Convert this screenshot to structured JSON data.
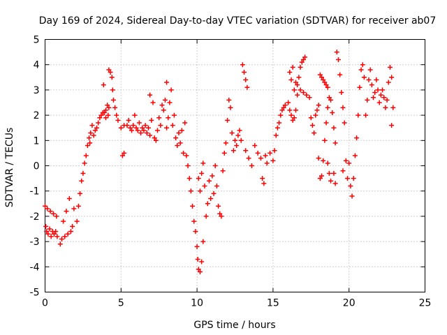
{
  "chart_data": {
    "type": "scatter",
    "title": "Day 169 of 2024, Sidereal Day-to-day VTEC variation (SDTVAR) for receiver ab07",
    "xlabel": "GPS time / hours",
    "ylabel": "SDTVAR / TECUs",
    "xlim": [
      0,
      25
    ],
    "ylim": [
      -5,
      5
    ],
    "xticks": [
      0,
      5,
      10,
      15,
      20,
      25
    ],
    "yticks": [
      -5,
      -4,
      -3,
      -2,
      -1,
      0,
      1,
      2,
      3,
      4,
      5
    ],
    "grid": true,
    "marker": "+",
    "series": [
      {
        "name": "SDTVAR",
        "color": "#ff0000",
        "points": [
          [
            0.0,
            -1.6
          ],
          [
            0.05,
            -2.4
          ],
          [
            0.1,
            -2.6
          ],
          [
            0.15,
            -1.7
          ],
          [
            0.2,
            -2.7
          ],
          [
            0.3,
            -2.5
          ],
          [
            0.35,
            -1.8
          ],
          [
            0.4,
            -2.8
          ],
          [
            0.5,
            -2.6
          ],
          [
            0.55,
            -1.9
          ],
          [
            0.6,
            -2.7
          ],
          [
            0.7,
            -2.6
          ],
          [
            0.75,
            -2.0
          ],
          [
            0.8,
            -2.8
          ],
          [
            1.0,
            -3.1
          ],
          [
            1.1,
            -2.9
          ],
          [
            1.2,
            -2.2
          ],
          [
            1.3,
            -2.8
          ],
          [
            1.4,
            -1.8
          ],
          [
            1.5,
            -2.7
          ],
          [
            1.6,
            -1.3
          ],
          [
            1.7,
            -2.6
          ],
          [
            1.8,
            -2.4
          ],
          [
            1.9,
            -1.7
          ],
          [
            2.1,
            -2.2
          ],
          [
            2.2,
            -1.6
          ],
          [
            2.3,
            -1.1
          ],
          [
            2.4,
            -0.6
          ],
          [
            2.5,
            -0.3
          ],
          [
            2.6,
            0.1
          ],
          [
            2.7,
            0.4
          ],
          [
            2.8,
            0.8
          ],
          [
            2.9,
            1.1
          ],
          [
            3.0,
            1.3
          ],
          [
            3.1,
            1.6
          ],
          [
            2.95,
            0.9
          ],
          [
            3.2,
            1.2
          ],
          [
            3.3,
            1.4
          ],
          [
            3.4,
            1.5
          ],
          [
            3.5,
            1.7
          ],
          [
            3.6,
            1.9
          ],
          [
            3.7,
            2.0
          ],
          [
            3.8,
            2.1
          ],
          [
            3.9,
            2.1
          ],
          [
            4.0,
            2.2
          ],
          [
            4.1,
            2.4
          ],
          [
            4.2,
            2.3
          ],
          [
            3.85,
            3.2
          ],
          [
            4.0,
            1.9
          ],
          [
            4.15,
            2.0
          ],
          [
            4.2,
            3.8
          ],
          [
            4.3,
            3.7
          ],
          [
            4.4,
            3.5
          ],
          [
            4.45,
            3.0
          ],
          [
            4.5,
            2.6
          ],
          [
            4.6,
            2.3
          ],
          [
            4.7,
            2.0
          ],
          [
            4.8,
            1.8
          ],
          [
            5.0,
            1.5
          ],
          [
            5.2,
            1.6
          ],
          [
            5.1,
            0.4
          ],
          [
            5.2,
            0.5
          ],
          [
            5.4,
            1.6
          ],
          [
            5.5,
            1.8
          ],
          [
            5.6,
            1.5
          ],
          [
            5.7,
            1.4
          ],
          [
            5.8,
            1.6
          ],
          [
            5.9,
            2.0
          ],
          [
            6.0,
            1.5
          ],
          [
            6.1,
            1.4
          ],
          [
            6.2,
            1.7
          ],
          [
            6.3,
            1.3
          ],
          [
            6.4,
            1.5
          ],
          [
            6.5,
            1.4
          ],
          [
            6.6,
            1.6
          ],
          [
            6.7,
            1.3
          ],
          [
            6.8,
            1.5
          ],
          [
            6.9,
            1.2
          ],
          [
            7.0,
            1.8
          ],
          [
            7.1,
            2.5
          ],
          [
            6.9,
            2.8
          ],
          [
            7.2,
            1.1
          ],
          [
            7.3,
            1.0
          ],
          [
            7.4,
            1.4
          ],
          [
            7.5,
            1.9
          ],
          [
            7.6,
            1.6
          ],
          [
            7.7,
            2.4
          ],
          [
            7.8,
            2.2
          ],
          [
            7.9,
            2.6
          ],
          [
            8.0,
            1.5
          ],
          [
            8.1,
            1.9
          ],
          [
            8.2,
            2.5
          ],
          [
            8.3,
            3.0
          ],
          [
            8.0,
            3.3
          ],
          [
            8.4,
            1.6
          ],
          [
            8.5,
            2.0
          ],
          [
            8.6,
            1.1
          ],
          [
            8.7,
            0.8
          ],
          [
            8.8,
            1.3
          ],
          [
            8.9,
            0.9
          ],
          [
            9.0,
            1.4
          ],
          [
            9.1,
            0.5
          ],
          [
            9.2,
            1.7
          ],
          [
            9.3,
            0.4
          ],
          [
            9.4,
            0.0
          ],
          [
            9.5,
            -0.5
          ],
          [
            9.6,
            -1.0
          ],
          [
            9.7,
            -1.6
          ],
          [
            9.8,
            -2.2
          ],
          [
            9.9,
            -2.6
          ],
          [
            10.0,
            -3.2
          ],
          [
            10.05,
            -3.7
          ],
          [
            10.1,
            -4.1
          ],
          [
            10.2,
            -4.2
          ],
          [
            10.3,
            -3.8
          ],
          [
            10.4,
            -3.0
          ],
          [
            10.1,
            -0.5
          ],
          [
            10.2,
            -1.0
          ],
          [
            10.3,
            -0.3
          ],
          [
            10.4,
            0.1
          ],
          [
            10.5,
            -0.8
          ],
          [
            10.6,
            -2.0
          ],
          [
            10.7,
            -1.5
          ],
          [
            10.8,
            -0.6
          ],
          [
            10.9,
            -1.3
          ],
          [
            11.0,
            -0.4
          ],
          [
            11.1,
            -1.1
          ],
          [
            11.2,
            0.0
          ],
          [
            11.3,
            -0.8
          ],
          [
            11.4,
            -1.6
          ],
          [
            11.5,
            -1.9
          ],
          [
            11.6,
            -2.0
          ],
          [
            11.7,
            -0.2
          ],
          [
            11.8,
            0.5
          ],
          [
            11.9,
            0.9
          ],
          [
            12.0,
            1.8
          ],
          [
            12.1,
            2.6
          ],
          [
            12.2,
            2.3
          ],
          [
            12.3,
            1.3
          ],
          [
            12.4,
            0.6
          ],
          [
            12.5,
            1.0
          ],
          [
            12.6,
            0.8
          ],
          [
            12.7,
            1.2
          ],
          [
            12.8,
            1.4
          ],
          [
            12.9,
            1.0
          ],
          [
            13.0,
            4.0
          ],
          [
            13.1,
            3.7
          ],
          [
            13.2,
            3.4
          ],
          [
            13.3,
            3.1
          ],
          [
            13.2,
            0.6
          ],
          [
            13.4,
            0.3
          ],
          [
            13.6,
            0.0
          ],
          [
            13.8,
            0.8
          ],
          [
            14.0,
            0.5
          ],
          [
            14.2,
            0.3
          ],
          [
            14.3,
            -0.5
          ],
          [
            14.4,
            -0.7
          ],
          [
            14.5,
            0.4
          ],
          [
            14.6,
            0.1
          ],
          [
            14.8,
            0.5
          ],
          [
            15.0,
            0.2
          ],
          [
            15.1,
            0.6
          ],
          [
            15.2,
            1.2
          ],
          [
            15.3,
            1.5
          ],
          [
            15.4,
            1.7
          ],
          [
            15.5,
            2.0
          ],
          [
            15.6,
            2.2
          ],
          [
            15.7,
            2.3
          ],
          [
            15.8,
            2.4
          ],
          [
            16.0,
            2.5
          ],
          [
            16.1,
            2.2
          ],
          [
            16.2,
            2.0
          ],
          [
            16.3,
            1.8
          ],
          [
            16.4,
            1.9
          ],
          [
            16.5,
            2.2
          ],
          [
            16.6,
            2.8
          ],
          [
            16.7,
            3.5
          ],
          [
            16.8,
            3.9
          ],
          [
            16.9,
            4.1
          ],
          [
            17.0,
            4.2
          ],
          [
            17.1,
            4.3
          ],
          [
            16.6,
            3.2
          ],
          [
            16.4,
            3.0
          ],
          [
            16.2,
            3.4
          ],
          [
            16.1,
            3.7
          ],
          [
            16.3,
            3.9
          ],
          [
            16.5,
            3.3
          ],
          [
            16.8,
            3.0
          ],
          [
            17.0,
            2.9
          ],
          [
            17.2,
            2.8
          ],
          [
            17.4,
            2.7
          ],
          [
            17.5,
            1.9
          ],
          [
            17.6,
            1.6
          ],
          [
            17.7,
            1.3
          ],
          [
            17.8,
            2.0
          ],
          [
            17.9,
            2.2
          ],
          [
            18.0,
            2.4
          ],
          [
            18.1,
            3.6
          ],
          [
            18.2,
            3.5
          ],
          [
            18.3,
            3.4
          ],
          [
            18.4,
            3.3
          ],
          [
            18.5,
            3.2
          ],
          [
            18.6,
            3.1
          ],
          [
            18.0,
            0.3
          ],
          [
            18.1,
            -0.5
          ],
          [
            18.2,
            -0.4
          ],
          [
            18.3,
            0.2
          ],
          [
            18.4,
            1.0
          ],
          [
            18.5,
            1.7
          ],
          [
            18.6,
            2.3
          ],
          [
            18.7,
            2.7
          ],
          [
            18.8,
            2.6
          ],
          [
            18.9,
            2.1
          ],
          [
            19.0,
            1.5
          ],
          [
            19.1,
            0.9
          ],
          [
            18.6,
            0.1
          ],
          [
            18.7,
            -0.3
          ],
          [
            18.8,
            -0.6
          ],
          [
            19.0,
            -0.3
          ],
          [
            19.1,
            -0.7
          ],
          [
            19.2,
            4.5
          ],
          [
            19.3,
            4.2
          ],
          [
            19.4,
            3.6
          ],
          [
            19.5,
            2.9
          ],
          [
            19.6,
            2.3
          ],
          [
            19.7,
            1.7
          ],
          [
            19.6,
            -0.2
          ],
          [
            19.8,
            0.2
          ],
          [
            20.0,
            0.1
          ],
          [
            19.9,
            -0.5
          ],
          [
            20.1,
            -0.8
          ],
          [
            20.2,
            -1.2
          ],
          [
            20.3,
            -0.5
          ],
          [
            20.4,
            0.4
          ],
          [
            20.5,
            1.1
          ],
          [
            20.6,
            2.0
          ],
          [
            20.7,
            3.1
          ],
          [
            20.8,
            3.8
          ],
          [
            20.9,
            4.0
          ],
          [
            21.0,
            3.5
          ],
          [
            21.1,
            2.0
          ],
          [
            21.2,
            2.6
          ],
          [
            21.3,
            3.4
          ],
          [
            21.4,
            3.8
          ],
          [
            21.5,
            3.2
          ],
          [
            21.6,
            2.7
          ],
          [
            21.7,
            2.9
          ],
          [
            21.8,
            3.4
          ],
          [
            21.9,
            3.0
          ],
          [
            22.0,
            2.5
          ],
          [
            22.1,
            2.8
          ],
          [
            22.2,
            3.0
          ],
          [
            22.3,
            2.7
          ],
          [
            22.4,
            2.3
          ],
          [
            22.5,
            2.6
          ],
          [
            22.6,
            3.3
          ],
          [
            22.7,
            3.9
          ],
          [
            22.8,
            3.5
          ],
          [
            22.9,
            2.3
          ],
          [
            22.8,
            1.6
          ]
        ]
      }
    ]
  }
}
